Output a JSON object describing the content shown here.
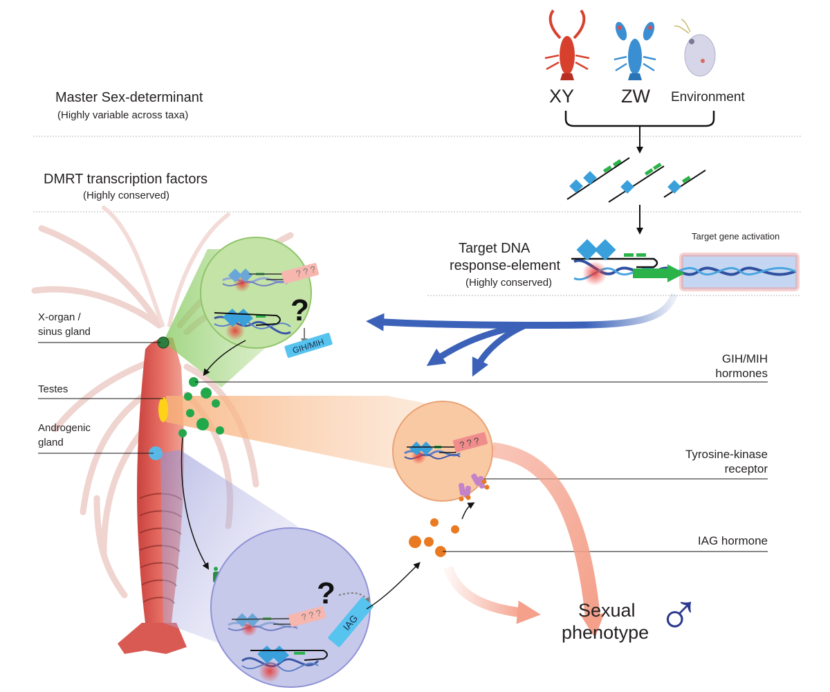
{
  "rows": {
    "master": {
      "title": "Master Sex-determinant",
      "subtitle": "(Highly variable across taxa)"
    },
    "dmrt": {
      "title": "DMRT transcription factors",
      "subtitle": "(Highly conserved)"
    },
    "target": {
      "title_line1": "Target DNA",
      "title_line2": "response-element",
      "subtitle": "(Highly conserved)",
      "activation": "Target gene activation"
    }
  },
  "systems": {
    "xy": "XY",
    "zw": "ZW",
    "env": "Environment"
  },
  "organs": {
    "xorgan_line1": "X-organ /",
    "xorgan_line2": "sinus gland",
    "testes": "Testes",
    "androgenic_line1": "Androgenic",
    "androgenic_line2": "gland"
  },
  "hormones": {
    "gih_line1": "GIH/MIH",
    "gih_line2": "hormones",
    "tk_line1": "Tyrosine-kinase",
    "tk_line2": "receptor",
    "iag": "IAG hormone"
  },
  "gene_labels": {
    "gih": "GIH/MIH",
    "iag": "IAG",
    "unknown": "? ? ?",
    "question": "?"
  },
  "phenotype": {
    "line1": "Sexual",
    "line2": "phenotype",
    "male_symbol": "♂"
  },
  "colors": {
    "text": "#231f20",
    "dmrt_blue": "#3aa0dc",
    "green_box": "#2bb34a",
    "flow_blue": "#3b62b8",
    "hormone_green": "#22a84a",
    "iag_orange": "#e97a22",
    "gih_blue": "#57c3ef",
    "unknown_pink": "#f08c8c",
    "male_blue": "#2b3a8f",
    "inhibit_red": "#e0202b"
  }
}
